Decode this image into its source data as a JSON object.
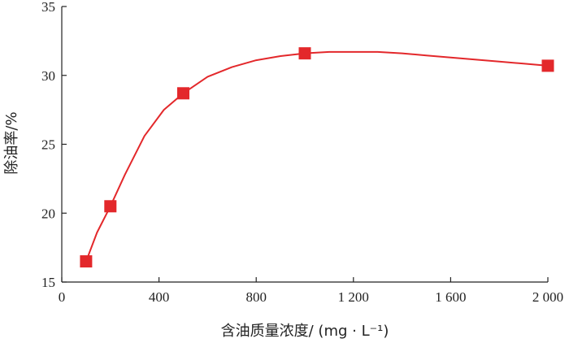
{
  "chart_data": {
    "type": "line",
    "xlabel": "含油质量浓度/ (mg · L⁻¹)",
    "ylabel": "除油率/%",
    "xlim": [
      0,
      2000
    ],
    "ylim": [
      15,
      35
    ],
    "xticks": [
      0,
      400,
      800,
      1200,
      1600,
      2000
    ],
    "xtick_labels": [
      "0",
      "400",
      "800",
      "1 200",
      "1 600",
      "2 000"
    ],
    "yticks": [
      15,
      20,
      25,
      30,
      35
    ],
    "ytick_labels": [
      "15",
      "20",
      "25",
      "30",
      "35"
    ],
    "grid": false,
    "series": [
      {
        "color": "#e3282b",
        "marker": "square",
        "x": [
          100,
          200,
          500,
          1000,
          2000
        ],
        "y": [
          16.5,
          20.5,
          28.7,
          31.6,
          30.7
        ]
      }
    ],
    "curve": {
      "x": [
        100,
        145,
        200,
        260,
        340,
        420,
        500,
        600,
        700,
        800,
        900,
        1000,
        1100,
        1200,
        1300,
        1400,
        1500,
        1600,
        1700,
        1800,
        1900,
        2000
      ],
      "y": [
        16.5,
        18.6,
        20.5,
        22.8,
        25.6,
        27.5,
        28.7,
        29.9,
        30.6,
        31.1,
        31.4,
        31.6,
        31.7,
        31.7,
        31.7,
        31.6,
        31.45,
        31.3,
        31.15,
        31.0,
        30.85,
        30.7
      ]
    }
  }
}
